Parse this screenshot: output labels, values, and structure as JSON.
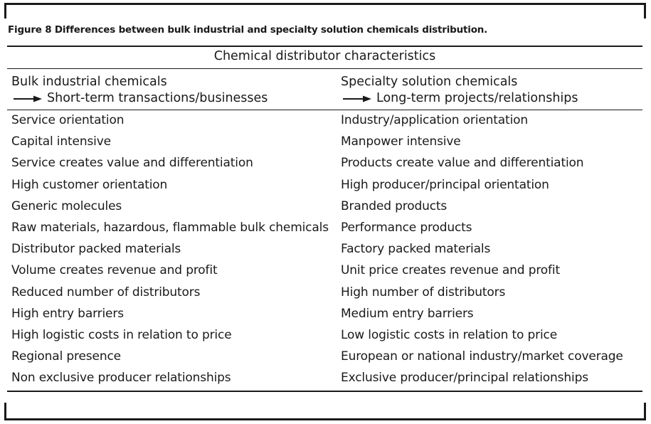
{
  "caption": "Figure 8 Differences between bulk industrial and specialty solution chemicals distribution.",
  "table": {
    "title": "Chemical distributor characteristics",
    "columns": [
      {
        "heading": "Bulk industrial chemicals",
        "subheading": "Short-term transactions/businesses"
      },
      {
        "heading": "Specialty solution chemicals",
        "subheading": "Long-term projects/relationships"
      }
    ],
    "rows": [
      [
        "Service orientation",
        "Industry/application orientation"
      ],
      [
        "Capital intensive",
        "Manpower intensive"
      ],
      [
        "Service creates value and differentiation",
        "Products create value and differentiation"
      ],
      [
        "High customer orientation",
        "High producer/principal orientation"
      ],
      [
        "Generic molecules",
        "Branded products"
      ],
      [
        "Raw materials, hazardous, flammable bulk chemicals",
        "Performance products"
      ],
      [
        "Distributor packed materials",
        "Factory packed materials"
      ],
      [
        "Volume creates revenue and profit",
        "Unit price creates revenue and profit"
      ],
      [
        "Reduced number of distributors",
        "High number of distributors"
      ],
      [
        "High entry barriers",
        "Medium entry barriers"
      ],
      [
        "High logistic costs in relation to price",
        "Low logistic costs in relation to price"
      ],
      [
        "Regional presence",
        "European or national industry/market coverage"
      ],
      [
        "Non exclusive producer relationships",
        "Exclusive producer/principal relationships"
      ]
    ]
  },
  "icons": {
    "subheading_marker": "right-arrow-icon"
  }
}
